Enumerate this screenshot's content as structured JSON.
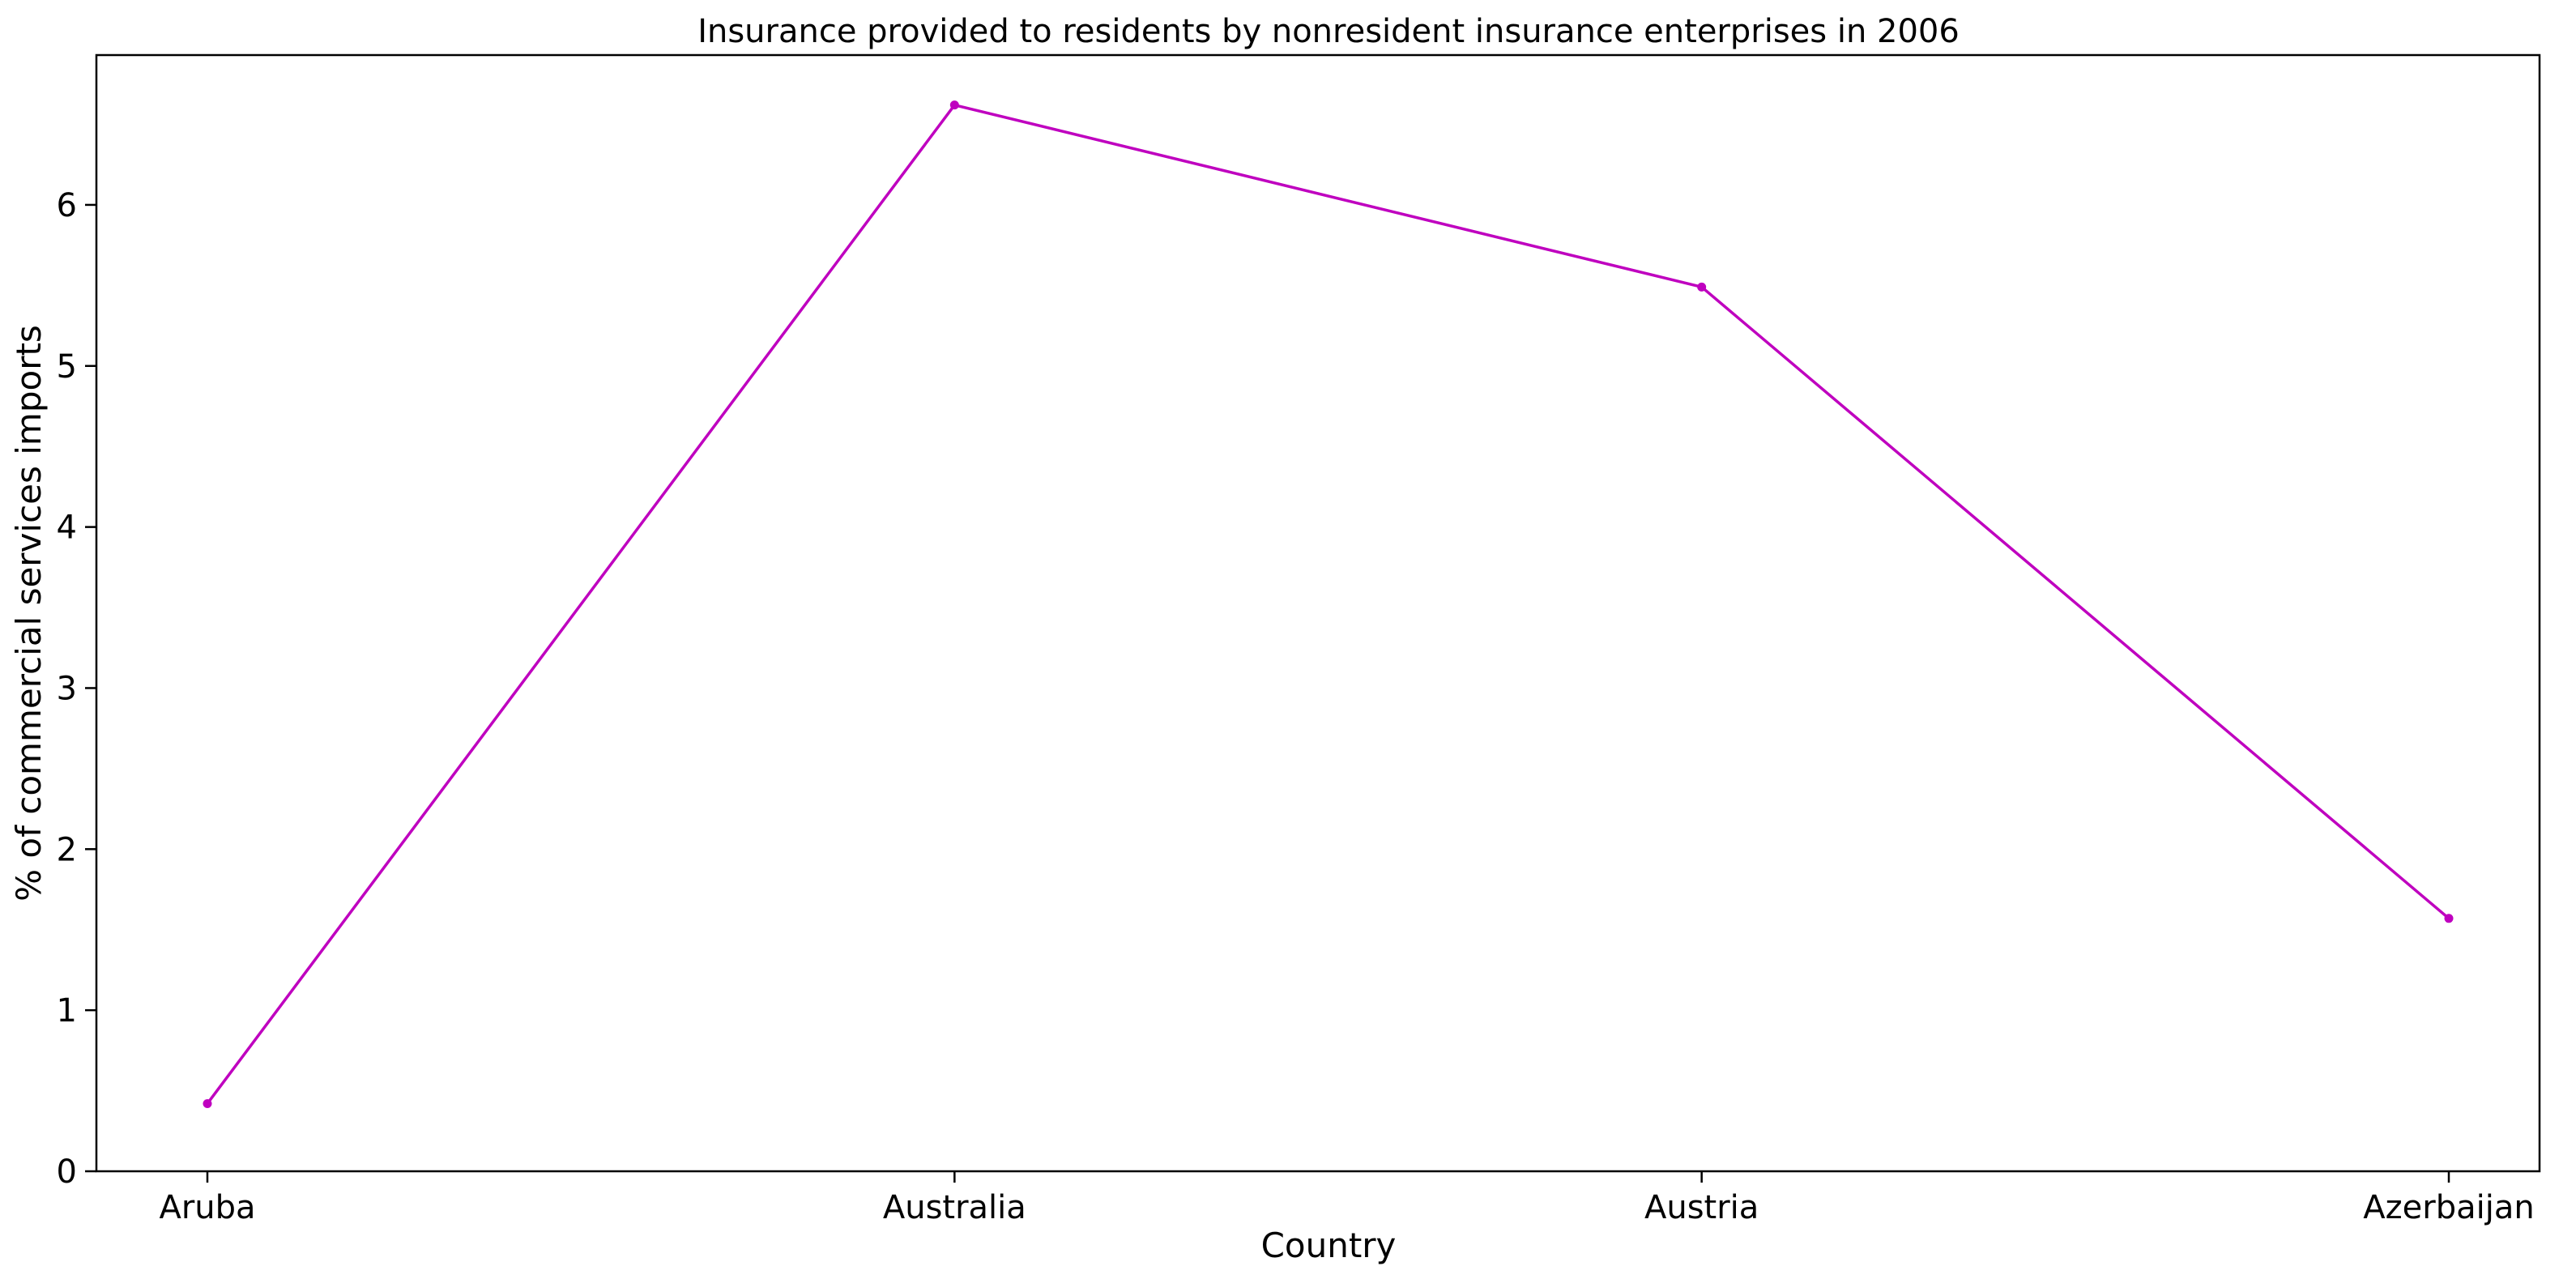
{
  "chart_data": {
    "type": "line",
    "title": "Insurance provided to residents by nonresident insurance enterprises in 2006",
    "xlabel": "Country",
    "ylabel": "% of commercial services imports",
    "categories": [
      "Aruba",
      "Australia",
      "Austria",
      "Azerbaijan"
    ],
    "series": [
      {
        "values": [
          0.42,
          6.62,
          5.49,
          1.57
        ],
        "color": "#bf00bf"
      }
    ],
    "ylim": [
      0,
      6.93
    ],
    "yticks": [
      0,
      1,
      2,
      3,
      4,
      5,
      6
    ],
    "grid": false,
    "legend": "none"
  }
}
